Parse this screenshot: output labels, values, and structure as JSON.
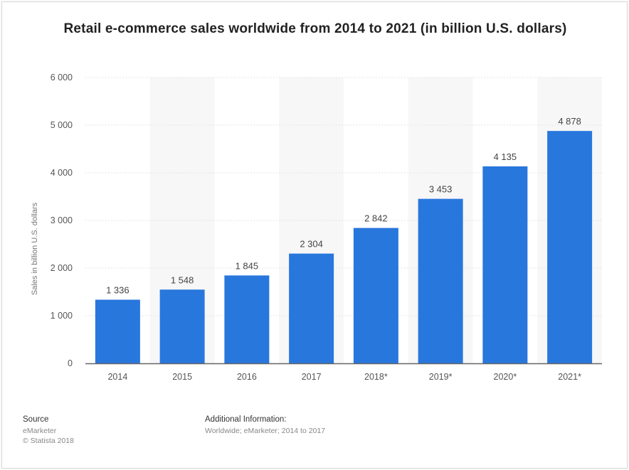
{
  "chart_data": {
    "type": "bar",
    "title": "Retail e-commerce sales worldwide from 2014 to 2021 (in billion U.S. dollars)",
    "xlabel": "",
    "ylabel": "Sales in billion U.S. dollars",
    "categories": [
      "2014",
      "2015",
      "2016",
      "2017",
      "2018*",
      "2019*",
      "2020*",
      "2021*"
    ],
    "values": [
      1336,
      1548,
      1845,
      2304,
      2842,
      3453,
      4135,
      4878
    ],
    "value_labels": [
      "1 336",
      "1 548",
      "1 845",
      "2 304",
      "2 842",
      "3 453",
      "4 135",
      "4 878"
    ],
    "ylim": [
      0,
      6000
    ],
    "yticks": [
      0,
      1000,
      2000,
      3000,
      4000,
      5000,
      6000
    ],
    "ytick_labels": [
      "0",
      "1 000",
      "2 000",
      "3 000",
      "4 000",
      "5 000",
      "6 000"
    ],
    "grid": true,
    "bar_color": "#2877dd",
    "band_color": "#f7f7f7",
    "grid_color": "#e6e6e6"
  },
  "footer": {
    "source_heading": "Source",
    "source_lines": [
      "eMarketer",
      "© Statista 2018"
    ],
    "additional_heading": "Additional Information:",
    "additional_text": "Worldwide; eMarketer; 2014 to 2017"
  }
}
